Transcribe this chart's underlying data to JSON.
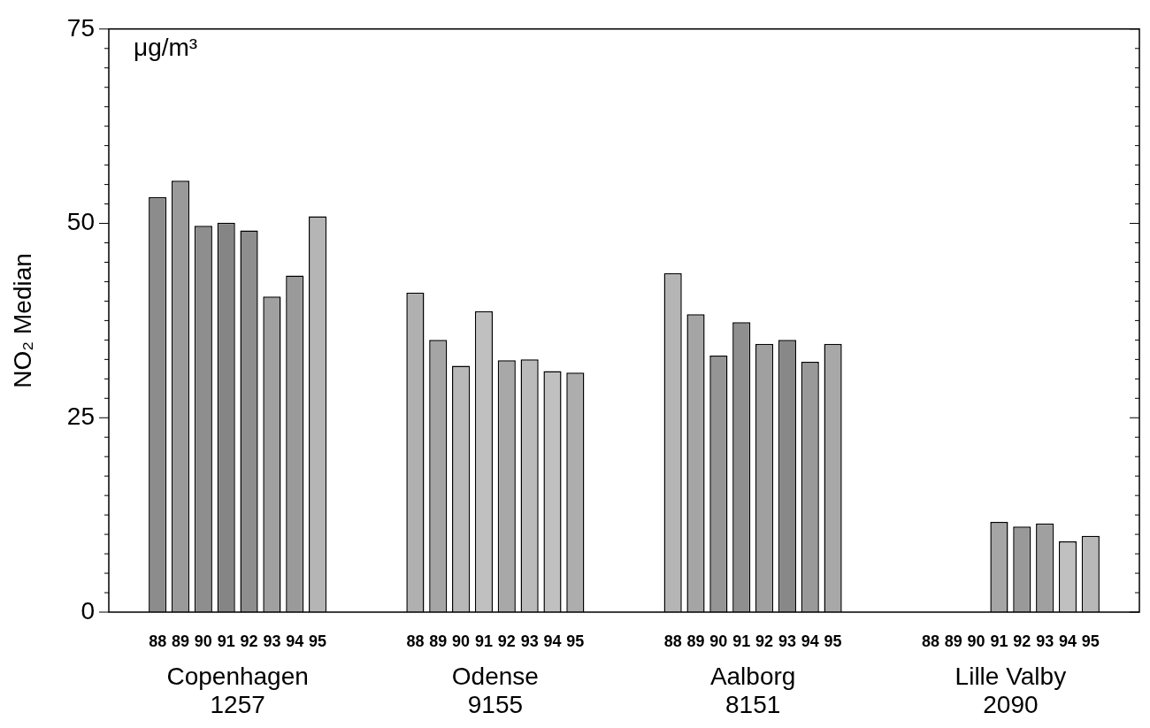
{
  "chart_data": {
    "type": "bar",
    "ylabel": "NO₂ Median",
    "annotations": [
      "μg/m³"
    ],
    "categories": [
      "Copenhagen\n1257",
      "Odense\n9155",
      "Aalborg\n8151",
      "Lille Valby\n2090"
    ],
    "series": [
      {
        "name": "88",
        "values": [
          53.4,
          41.1,
          43.6,
          null
        ],
        "colors": [
          "#8c8c8c",
          "#b0b0b0",
          "#b5b5b5",
          null
        ]
      },
      {
        "name": "89",
        "values": [
          55.5,
          35.0,
          38.3,
          null
        ],
        "colors": [
          "#9a9a9a",
          "#a5a5a5",
          "#a5a5a5",
          null
        ]
      },
      {
        "name": "90",
        "values": [
          49.7,
          31.7,
          33.0,
          null
        ],
        "colors": [
          "#8e8e8e",
          "#b8b8b8",
          "#959595",
          null
        ]
      },
      {
        "name": "91",
        "values": [
          50.1,
          38.7,
          37.3,
          11.6
        ],
        "colors": [
          "#858585",
          "#c0c0c0",
          "#8f8f8f",
          "#a5a5a5"
        ]
      },
      {
        "name": "92",
        "values": [
          49.1,
          32.4,
          34.5,
          11.0
        ],
        "colors": [
          "#8e8e8e",
          "#a8a8a8",
          "#a0a0a0",
          "#999999"
        ]
      },
      {
        "name": "93",
        "values": [
          40.6,
          32.5,
          35.0,
          11.4
        ],
        "colors": [
          "#a0a0a0",
          "#bababa",
          "#888888",
          "#a0a0a0"
        ]
      },
      {
        "name": "94",
        "values": [
          43.3,
          31.0,
          32.2,
          9.1
        ],
        "colors": [
          "#9a9a9a",
          "#c0c0c0",
          "#999999",
          "#c0c0c0"
        ]
      },
      {
        "name": "95",
        "values": [
          50.9,
          30.8,
          34.5,
          9.8
        ],
        "colors": [
          "#b5b5b5",
          "#adadad",
          "#a8a8a8",
          "#b8b8b8"
        ]
      }
    ],
    "ylim": [
      0,
      75
    ],
    "yticks": [
      0,
      {
        "value": 2.5,
        "label": null
      },
      {
        "value": 5,
        "label": null
      },
      {
        "value": 7.5,
        "label": null
      },
      {
        "value": 10,
        "label": null
      },
      {
        "value": 12.5,
        "label": null
      },
      {
        "value": 15,
        "label": null
      },
      {
        "value": 17.5,
        "label": null
      },
      {
        "value": 20,
        "label": null
      },
      {
        "value": 22.5,
        "label": null
      },
      25,
      {
        "value": 27.5,
        "label": null
      },
      {
        "value": 30,
        "label": null
      },
      {
        "value": 32.5,
        "label": null
      },
      {
        "value": 35,
        "label": null
      },
      {
        "value": 37.5,
        "label": null
      },
      {
        "value": 40,
        "label": null
      },
      {
        "value": 42.5,
        "label": null
      },
      {
        "value": 45,
        "label": null
      },
      {
        "value": 47.5,
        "label": null
      },
      50,
      {
        "value": 52.5,
        "label": null
      },
      {
        "value": 55,
        "label": null
      },
      {
        "value": 57.5,
        "label": null
      },
      {
        "value": 60,
        "label": null
      },
      {
        "value": 62.5,
        "label": null
      },
      {
        "value": 65,
        "label": null
      },
      {
        "value": 67.5,
        "label": null
      },
      {
        "value": 70,
        "label": null
      },
      {
        "value": 72.5,
        "label": null
      },
      75
    ]
  }
}
